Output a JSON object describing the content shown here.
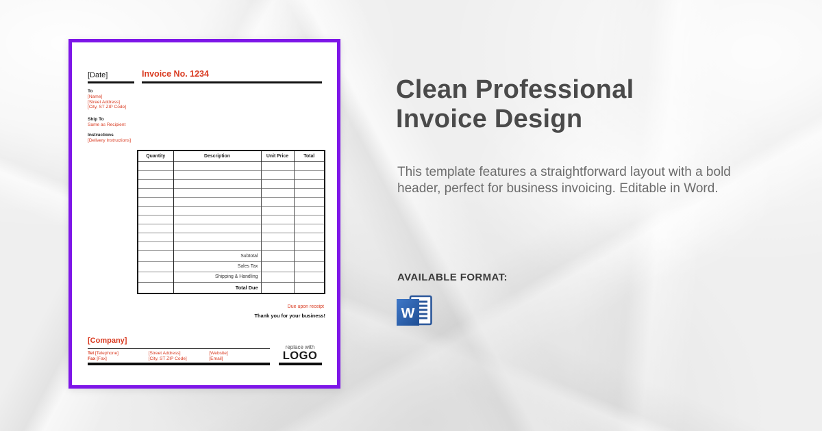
{
  "invoice_preview": {
    "date_label": "[Date]",
    "invoice_no": "Invoice No. 1234",
    "to_label": "To",
    "to_lines": [
      "[Name]",
      "[Street Address]",
      "[City, ST ZIP Code]"
    ],
    "ship_to_label": "Ship To",
    "ship_to_value": "Same as Recipient",
    "instructions_label": "Instructions",
    "instructions_value": "[Delivery Instructions]",
    "table": {
      "headers": [
        "Quantity",
        "Description",
        "Unit Price",
        "Total"
      ],
      "empty_row_count": 10,
      "summary_rows": [
        "Subtotal",
        "Sales Tax",
        "Shipping & Handling"
      ],
      "total_row": "Total Due"
    },
    "due_note": "Due upon receipt",
    "thanks_note": "Thank you for your business!",
    "company_label": "[Company]",
    "contact": {
      "tel_label": "Tel",
      "tel_value": "[Telephone]",
      "fax_label": "Fax",
      "fax_value": "[Fax]",
      "address_lines": [
        "[Street Address]",
        "[City, ST ZIP Code]"
      ],
      "online_lines": [
        "[Website]",
        "[Email]"
      ]
    },
    "logo": {
      "replace_text": "replace with",
      "logo_text": "LOGO"
    }
  },
  "panel": {
    "title": "Clean Professional Invoice Design",
    "description": "This template features a straightforward layout with a bold header, perfect for business invoicing. Editable in Word.",
    "format_label": "AVAILABLE FORMAT:",
    "format_icon": "Microsoft Word",
    "word_letter": "W"
  },
  "colors": {
    "accent_red": "#d93a20",
    "card_border_purple": "#7d15e8",
    "word_blue": "#2b579a",
    "title_gray": "#4a4a4a"
  }
}
